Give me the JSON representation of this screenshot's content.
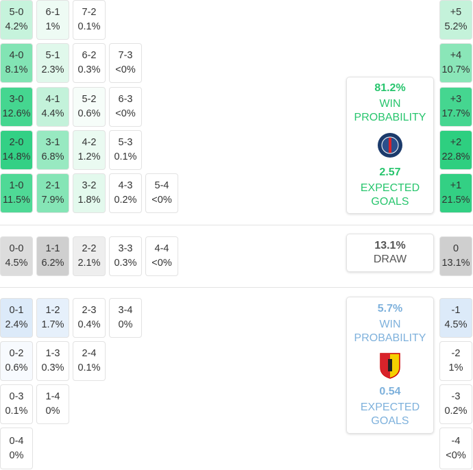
{
  "home_rows": [
    [
      {
        "score": "5-0",
        "prob": "4.2%",
        "color": "#c6f3dc"
      },
      {
        "score": "6-1",
        "prob": "1%",
        "color": "#eefbf4"
      },
      {
        "score": "7-2",
        "prob": "0.1%",
        "color": "#ffffff"
      }
    ],
    [
      {
        "score": "4-0",
        "prob": "8.1%",
        "color": "#82e4b4"
      },
      {
        "score": "5-1",
        "prob": "2.3%",
        "color": "#e0f8eb"
      },
      {
        "score": "6-2",
        "prob": "0.3%",
        "color": "#ffffff"
      },
      {
        "score": "7-3",
        "prob": "<0%",
        "color": "#ffffff"
      }
    ],
    [
      {
        "score": "3-0",
        "prob": "12.6%",
        "color": "#45d690"
      },
      {
        "score": "4-1",
        "prob": "4.4%",
        "color": "#c3f2da"
      },
      {
        "score": "5-2",
        "prob": "0.6%",
        "color": "#f6fdf9"
      },
      {
        "score": "6-3",
        "prob": "<0%",
        "color": "#ffffff"
      }
    ],
    [
      {
        "score": "2-0",
        "prob": "14.8%",
        "color": "#33d085"
      },
      {
        "score": "3-1",
        "prob": "6.8%",
        "color": "#98e9c1"
      },
      {
        "score": "4-2",
        "prob": "1.2%",
        "color": "#eafaf1"
      },
      {
        "score": "5-3",
        "prob": "0.1%",
        "color": "#ffffff"
      }
    ],
    [
      {
        "score": "1-0",
        "prob": "11.5%",
        "color": "#4fd996"
      },
      {
        "score": "2-1",
        "prob": "7.9%",
        "color": "#85e5b6"
      },
      {
        "score": "3-2",
        "prob": "1.8%",
        "color": "#e3f9ed"
      },
      {
        "score": "4-3",
        "prob": "0.2%",
        "color": "#ffffff"
      },
      {
        "score": "5-4",
        "prob": "<0%",
        "color": "#ffffff"
      }
    ]
  ],
  "draw_row": [
    {
      "score": "0-0",
      "prob": "4.5%",
      "color": "#dcdcdc"
    },
    {
      "score": "1-1",
      "prob": "6.2%",
      "color": "#cfcfcf"
    },
    {
      "score": "2-2",
      "prob": "2.1%",
      "color": "#eeeeee"
    },
    {
      "score": "3-3",
      "prob": "0.3%",
      "color": "#ffffff"
    },
    {
      "score": "4-4",
      "prob": "<0%",
      "color": "#ffffff"
    }
  ],
  "away_rows": [
    [
      {
        "score": "0-1",
        "prob": "2.4%",
        "color": "#dceaf9"
      },
      {
        "score": "1-2",
        "prob": "1.7%",
        "color": "#e6f0fb"
      },
      {
        "score": "2-3",
        "prob": "0.4%",
        "color": "#ffffff"
      },
      {
        "score": "3-4",
        "prob": "0%",
        "color": "#ffffff"
      }
    ],
    [
      {
        "score": "0-2",
        "prob": "0.6%",
        "color": "#f7fafe"
      },
      {
        "score": "1-3",
        "prob": "0.3%",
        "color": "#ffffff"
      },
      {
        "score": "2-4",
        "prob": "0.1%",
        "color": "#ffffff"
      }
    ],
    [
      {
        "score": "0-3",
        "prob": "0.1%",
        "color": "#ffffff"
      },
      {
        "score": "1-4",
        "prob": "0%",
        "color": "#ffffff"
      }
    ],
    [
      {
        "score": "0-4",
        "prob": "0%",
        "color": "#ffffff"
      }
    ]
  ],
  "margins": [
    {
      "label": "+5",
      "prob": "5.2%",
      "color": "#c4f2da"
    },
    {
      "label": "+4",
      "prob": "10.7%",
      "color": "#8ae6b8"
    },
    {
      "label": "+3",
      "prob": "17.7%",
      "color": "#45d690"
    },
    {
      "label": "+2",
      "prob": "22.8%",
      "color": "#2ecf80"
    },
    {
      "label": "+1",
      "prob": "21.5%",
      "color": "#33d084"
    },
    {
      "label": "0",
      "prob": "13.1%",
      "color": "#cfcfcf"
    },
    {
      "label": "-1",
      "prob": "4.5%",
      "color": "#dceaf9"
    },
    {
      "label": "-2",
      "prob": "1%",
      "color": "#ffffff"
    },
    {
      "label": "-3",
      "prob": "0.2%",
      "color": "#ffffff"
    },
    {
      "label": "-4",
      "prob": "<0%",
      "color": "#ffffff"
    }
  ],
  "home_card": {
    "win_pct": "81.2%",
    "win_label": "WIN PROBABILITY",
    "xg": "2.57",
    "xg_label": "EXPECTED GOALS"
  },
  "draw_card": {
    "pct": "13.1%",
    "label": "DRAW"
  },
  "away_card": {
    "win_pct": "5.7%",
    "win_label": "WIN PROBABILITY",
    "xg": "0.54",
    "xg_label": "EXPECTED GOALS"
  }
}
